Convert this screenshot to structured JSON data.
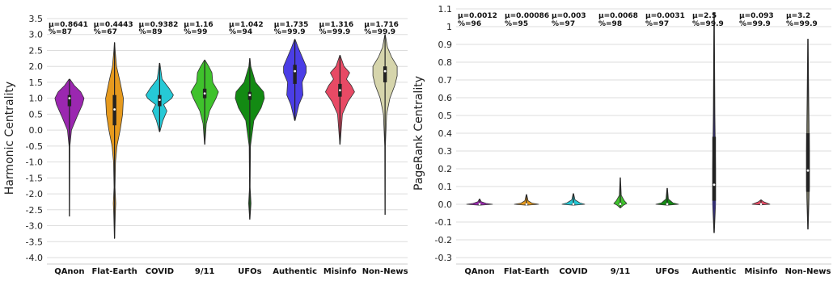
{
  "chart_data": [
    {
      "type": "violin",
      "ylabel": "Harmonic Centrality",
      "ylim": [
        -4.0,
        3.5
      ],
      "yticks": [
        "3.5",
        "3.0",
        "2.5",
        "2.0",
        "1.5",
        "1.0",
        "0.5",
        "0.0",
        "-0.5",
        "-1.0",
        "-1.5",
        "-2.0",
        "-2.5",
        "-3.0",
        "-3.5",
        "-4.0"
      ],
      "grid": true,
      "categories": [
        "QAnon",
        "Flat-Earth",
        "COVID",
        "9/11",
        "UFOs",
        "Authentic",
        "Misinfo",
        "Non-News"
      ],
      "means": [
        "μ=0.8641",
        "μ=0.4443",
        "μ=0.9382",
        "μ=1.16",
        "μ=1.042",
        "μ=1.735",
        "μ=1.316",
        "μ=1.716"
      ],
      "percents": [
        "%=87",
        "%=67",
        "%=89",
        "%=99",
        "%=94",
        "%=99.9",
        "%=99.9",
        "%=99.9"
      ],
      "colors": [
        "#9b27b0",
        "#e69a1e",
        "#26c9d6",
        "#3fc22c",
        "#138a13",
        "#4b3ee6",
        "#e84a65",
        "#d6d5ac"
      ],
      "series": [
        {
          "name": "QAnon",
          "min": -2.7,
          "max": 1.6,
          "q1": 0.75,
          "median": 1.0,
          "q3": 1.1,
          "profile": [
            [
              -2.7,
              0.2
            ],
            [
              -0.5,
              0.5
            ],
            [
              0.0,
              2.5
            ],
            [
              0.4,
              9
            ],
            [
              0.8,
              16
            ],
            [
              1.0,
              18
            ],
            [
              1.2,
              14
            ],
            [
              1.4,
              6
            ],
            [
              1.6,
              0.5
            ]
          ]
        },
        {
          "name": "Flat-Earth",
          "min": -3.4,
          "max": 2.75,
          "q1": 0.15,
          "median": 0.65,
          "q3": 1.1,
          "profile": [
            [
              -3.4,
              0.2
            ],
            [
              -2.6,
              1
            ],
            [
              -2.3,
              1.5
            ],
            [
              -1.8,
              0.6
            ],
            [
              -1.0,
              1.2
            ],
            [
              -0.5,
              3
            ],
            [
              0.0,
              7
            ],
            [
              0.5,
              10
            ],
            [
              1.0,
              11
            ],
            [
              1.5,
              7
            ],
            [
              2.0,
              2.5
            ],
            [
              2.5,
              0.8
            ],
            [
              2.75,
              0.2
            ]
          ]
        },
        {
          "name": "COVID",
          "min": -0.05,
          "max": 2.1,
          "q1": 0.75,
          "median": 0.95,
          "q3": 1.1,
          "profile": [
            [
              -0.05,
              0.3
            ],
            [
              0.3,
              4
            ],
            [
              0.6,
              9
            ],
            [
              0.8,
              5
            ],
            [
              1.0,
              15
            ],
            [
              1.1,
              17
            ],
            [
              1.3,
              12
            ],
            [
              1.6,
              3
            ],
            [
              2.1,
              0.3
            ]
          ]
        },
        {
          "name": "9/11",
          "min": -0.45,
          "max": 2.2,
          "q1": 1.0,
          "median": 1.15,
          "q3": 1.3,
          "profile": [
            [
              -0.45,
              0.2
            ],
            [
              0.2,
              2
            ],
            [
              0.6,
              6
            ],
            [
              1.0,
              14
            ],
            [
              1.2,
              17
            ],
            [
              1.5,
              10
            ],
            [
              1.8,
              9
            ],
            [
              2.0,
              5
            ],
            [
              2.2,
              0.3
            ]
          ]
        },
        {
          "name": "UFOs",
          "min": -2.8,
          "max": 2.25,
          "q1": 0.95,
          "median": 1.1,
          "q3": 1.2,
          "profile": [
            [
              -2.8,
              0.2
            ],
            [
              -2.3,
              1.5
            ],
            [
              -1.8,
              0.4
            ],
            [
              -0.5,
              0.8
            ],
            [
              0.3,
              5
            ],
            [
              0.7,
              14
            ],
            [
              1.0,
              18
            ],
            [
              1.2,
              17
            ],
            [
              1.5,
              7
            ],
            [
              2.0,
              1.2
            ],
            [
              2.25,
              0.2
            ]
          ]
        },
        {
          "name": "Authentic",
          "min": 0.3,
          "max": 2.85,
          "q1": 1.45,
          "median": 1.85,
          "q3": 2.05,
          "profile": [
            [
              0.3,
              0.3
            ],
            [
              0.8,
              5
            ],
            [
              1.1,
              10
            ],
            [
              1.5,
              9
            ],
            [
              1.8,
              14
            ],
            [
              2.0,
              14
            ],
            [
              2.3,
              9
            ],
            [
              2.6,
              4
            ],
            [
              2.85,
              0.3
            ]
          ]
        },
        {
          "name": "Misinfo",
          "min": -0.45,
          "max": 2.35,
          "q1": 1.05,
          "median": 1.25,
          "q3": 1.45,
          "profile": [
            [
              -0.45,
              0.2
            ],
            [
              0.5,
              3
            ],
            [
              0.9,
              10
            ],
            [
              1.2,
              18
            ],
            [
              1.4,
              14
            ],
            [
              1.6,
              8
            ],
            [
              1.8,
              12
            ],
            [
              2.0,
              5
            ],
            [
              2.35,
              0.2
            ]
          ]
        },
        {
          "name": "Non-News",
          "min": -2.65,
          "max": 3.0,
          "q1": 1.5,
          "median": 1.85,
          "q3": 2.0,
          "profile": [
            [
              -2.65,
              0.2
            ],
            [
              -0.5,
              0.4
            ],
            [
              0.5,
              2
            ],
            [
              1.0,
              6
            ],
            [
              1.4,
              12
            ],
            [
              1.7,
              15
            ],
            [
              2.0,
              15
            ],
            [
              2.3,
              8
            ],
            [
              2.6,
              3
            ],
            [
              3.0,
              0.2
            ]
          ]
        }
      ]
    },
    {
      "type": "violin",
      "ylabel": "PageRank Centrality",
      "ylim": [
        -0.3,
        1.1
      ],
      "yticks": [
        "1.1",
        "1",
        "0.9",
        "0.8",
        "0.7",
        "0.6",
        "0.5",
        "0.4",
        "0.3",
        "0.2",
        "0.1",
        "0.0",
        "-0.1",
        "-0.2",
        "-0.3"
      ],
      "grid": true,
      "categories": [
        "QAnon",
        "Flat-Earth",
        "COVID",
        "9/11",
        "UFOs",
        "Authentic",
        "Misinfo",
        "Non-News"
      ],
      "means": [
        "μ=0.0012",
        "μ=0.00086",
        "μ=0.003",
        "μ=0.0068",
        "μ=0.0031",
        "μ=2.5",
        "μ=0.093",
        "μ=3.2"
      ],
      "percents": [
        "%=96",
        "%=95",
        "%=97",
        "%=98",
        "%=97",
        "%=99.9",
        "%=99.9",
        "%=99.9"
      ],
      "colors": [
        "#9b27b0",
        "#e69a1e",
        "#26c9d6",
        "#3fc22c",
        "#138a13",
        "#4b3ee6",
        "#e84a65",
        "#d6d5ac"
      ],
      "series": [
        {
          "name": "QAnon",
          "min": -0.005,
          "max": 0.03,
          "q1": 0.0,
          "median": 0.001,
          "q3": 0.002,
          "profile": [
            [
              -0.005,
              0.5
            ],
            [
              0.0,
              16
            ],
            [
              0.005,
              8
            ],
            [
              0.015,
              2
            ],
            [
              0.03,
              0.3
            ]
          ]
        },
        {
          "name": "Flat-Earth",
          "min": -0.005,
          "max": 0.055,
          "q1": 0.0,
          "median": 0.0,
          "q3": 0.002,
          "profile": [
            [
              -0.005,
              0.5
            ],
            [
              0.0,
              15
            ],
            [
              0.006,
              7
            ],
            [
              0.02,
              2
            ],
            [
              0.055,
              0.3
            ]
          ]
        },
        {
          "name": "COVID",
          "min": -0.005,
          "max": 0.06,
          "q1": 0.0,
          "median": 0.001,
          "q3": 0.004,
          "profile": [
            [
              -0.005,
              0.5
            ],
            [
              0.0,
              14
            ],
            [
              0.008,
              8
            ],
            [
              0.025,
              2
            ],
            [
              0.06,
              0.3
            ]
          ]
        },
        {
          "name": "9/11",
          "min": -0.02,
          "max": 0.15,
          "q1": 0.0,
          "median": 0.002,
          "q3": 0.008,
          "profile": [
            [
              -0.02,
              0.3
            ],
            [
              -0.005,
              4
            ],
            [
              0.005,
              8
            ],
            [
              0.02,
              5
            ],
            [
              0.05,
              1.2
            ],
            [
              0.15,
              0.2
            ]
          ]
        },
        {
          "name": "UFOs",
          "min": -0.005,
          "max": 0.09,
          "q1": 0.0,
          "median": 0.001,
          "q3": 0.004,
          "profile": [
            [
              -0.005,
              0.5
            ],
            [
              0.0,
              14
            ],
            [
              0.008,
              7
            ],
            [
              0.03,
              1.5
            ],
            [
              0.09,
              0.3
            ]
          ]
        },
        {
          "name": "Authentic",
          "min": -0.16,
          "max": 1.08,
          "q1": 0.02,
          "median": 0.11,
          "q3": 0.38,
          "profile": [
            [
              -0.16,
              0.3
            ],
            [
              0.0,
              1.8
            ],
            [
              0.2,
              1.8
            ],
            [
              0.5,
              1
            ],
            [
              1.08,
              0.3
            ]
          ]
        },
        {
          "name": "Misinfo",
          "min": -0.003,
          "max": 0.025,
          "q1": 0.0,
          "median": 0.001,
          "q3": 0.003,
          "profile": [
            [
              -0.003,
              0.5
            ],
            [
              0.0,
              11
            ],
            [
              0.006,
              8
            ],
            [
              0.015,
              3
            ],
            [
              0.025,
              0.3
            ]
          ]
        },
        {
          "name": "Non-News",
          "min": -0.14,
          "max": 0.93,
          "q1": 0.07,
          "median": 0.19,
          "q3": 0.4,
          "profile": [
            [
              -0.14,
              0.3
            ],
            [
              0.1,
              1.8
            ],
            [
              0.3,
              1.8
            ],
            [
              0.6,
              1
            ],
            [
              0.93,
              0.3
            ]
          ]
        }
      ]
    }
  ]
}
